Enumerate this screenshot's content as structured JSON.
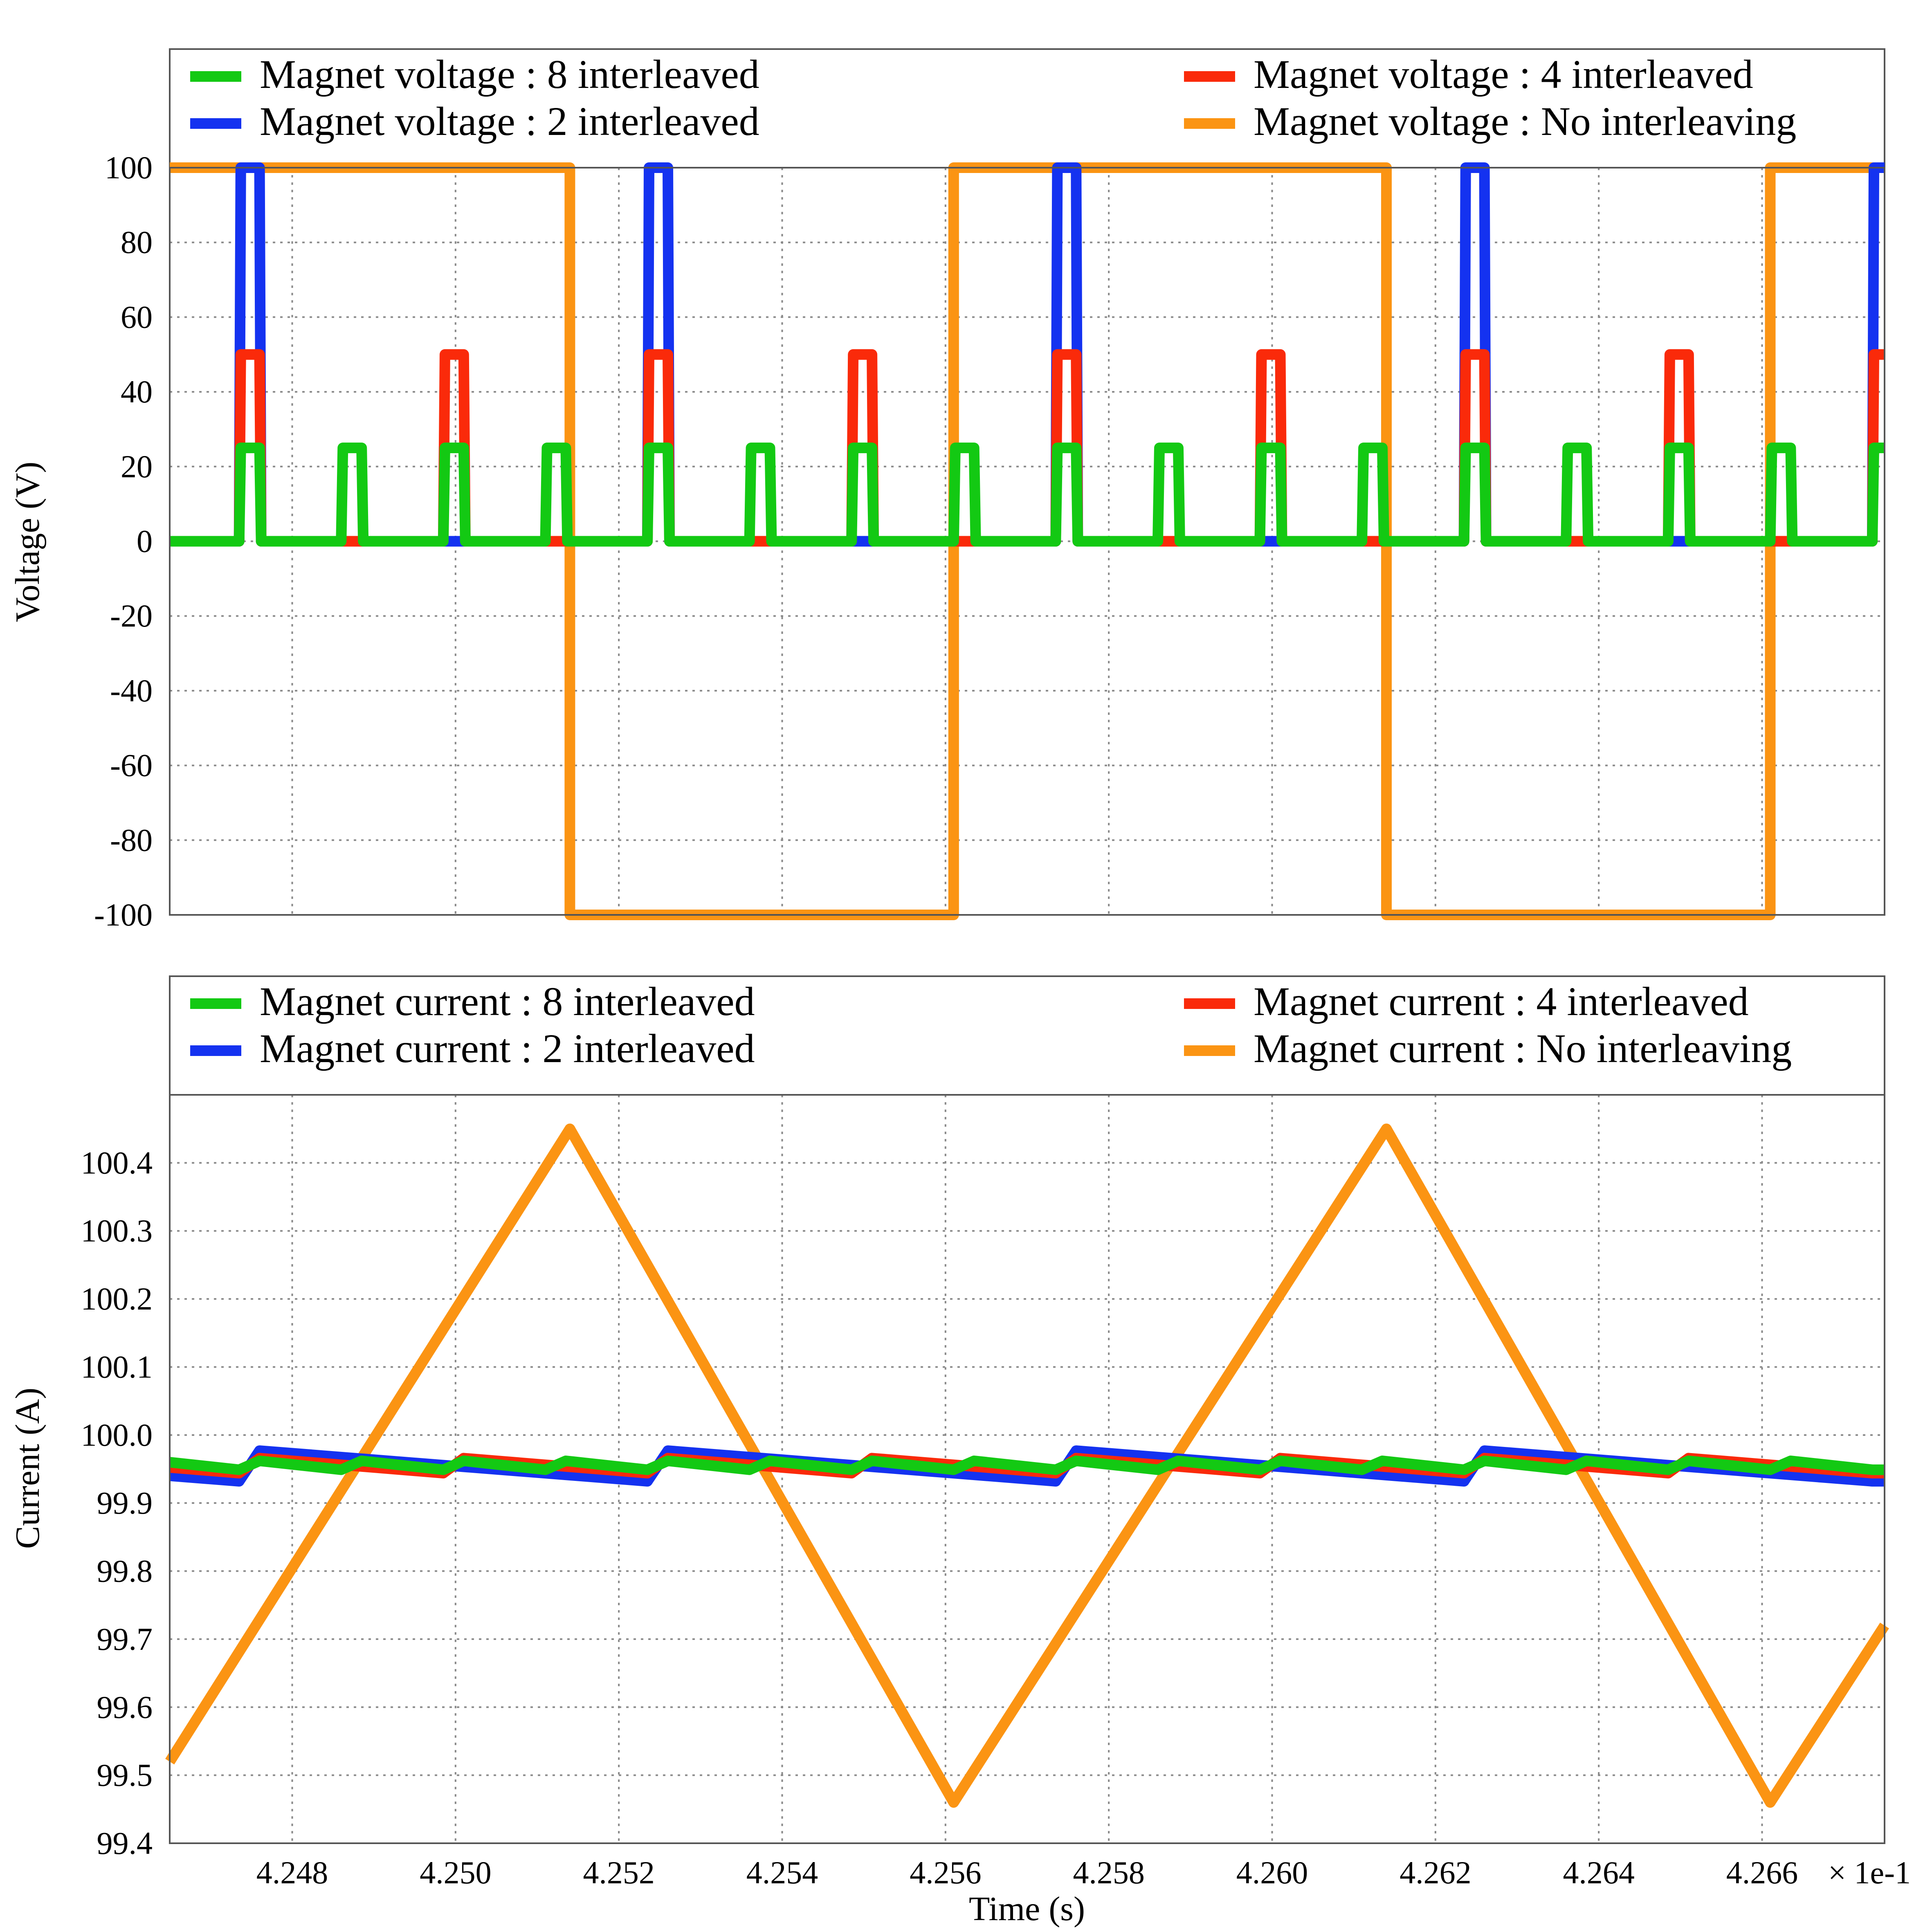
{
  "chart_data": [
    {
      "type": "line",
      "ylabel": "Voltage (V)",
      "xlabel": "",
      "xlim": [
        4.2465,
        4.2675
      ],
      "ylim": [
        -100,
        100
      ],
      "xticks": [
        "4.248",
        "4.250",
        "4.252",
        "4.254",
        "4.256",
        "4.258",
        "4.260",
        "4.262",
        "4.264",
        "4.266"
      ],
      "yticks": [
        "100",
        "80",
        "60",
        "40",
        "20",
        "0",
        "-20",
        "-40",
        "-60",
        "-80",
        "-100"
      ],
      "grid": true,
      "legend_position": "top",
      "series": [
        {
          "name": "Magnet voltage : 8 interleaved",
          "color": "#13c913",
          "kind": "pulse",
          "high": 25,
          "low": 0,
          "period": 0.00125,
          "first_rise": 0.00085,
          "width": 0.00025,
          "z": 4
        },
        {
          "name": "Magnet voltage : 2 interleaved",
          "color": "#1432f0",
          "kind": "pulse",
          "high": 100,
          "low": 0,
          "period": 0.005,
          "first_rise": 0.00085,
          "width": 0.00025,
          "z": 2
        },
        {
          "name": "Magnet voltage : 4 interleaved",
          "color": "#fa2a0a",
          "kind": "pulse",
          "high": 50,
          "low": 0,
          "period": 0.0025,
          "first_rise": 0.00085,
          "width": 0.00025,
          "z": 3
        },
        {
          "name": "Magnet voltage : No interleaving",
          "color": "#fb9413",
          "kind": "square",
          "high": 100,
          "low": -100,
          "x": [
            4.2465,
            4.2514,
            4.2514,
            4.2561,
            4.2561,
            4.2614,
            4.2614,
            4.2661,
            4.2661,
            4.2675
          ],
          "y": [
            100,
            100,
            -100,
            -100,
            100,
            100,
            -100,
            -100,
            100,
            100
          ],
          "z": 1
        }
      ],
      "legend_order": [
        0,
        2,
        1,
        3
      ]
    },
    {
      "type": "line",
      "ylabel": "Current (A)",
      "xlabel": "Time (s)",
      "x_multiplier": "× 1e-1",
      "xlim": [
        4.2465,
        4.2675
      ],
      "ylim": [
        99.4,
        100.5
      ],
      "xticks": [
        "4.248",
        "4.250",
        "4.252",
        "4.254",
        "4.256",
        "4.258",
        "4.260",
        "4.262",
        "4.264",
        "4.266"
      ],
      "yticks": [
        "100.4",
        "100.3",
        "100.2",
        "100.1",
        "100.0",
        "99.9",
        "99.8",
        "99.7",
        "99.6",
        "99.5",
        "99.4"
      ],
      "grid": true,
      "legend_position": "top",
      "series": [
        {
          "name": "Magnet current : 8 interleaved",
          "color": "#13c913",
          "kind": "sawtooth",
          "max": 99.962,
          "min": 99.949,
          "period": 0.00125,
          "first_rise": 0.00085,
          "width": 0.00025,
          "z": 4
        },
        {
          "name": "Magnet current : 2 interleaved",
          "color": "#1432f0",
          "kind": "sawtooth",
          "max": 99.977,
          "min": 99.932,
          "period": 0.005,
          "first_rise": 0.00085,
          "width": 0.00025,
          "z": 2
        },
        {
          "name": "Magnet current : 4 interleaved",
          "color": "#fa2a0a",
          "kind": "sawtooth",
          "max": 99.966,
          "min": 99.944,
          "period": 0.0025,
          "first_rise": 0.00085,
          "width": 0.00025,
          "z": 3
        },
        {
          "name": "Magnet current : No interleaving",
          "color": "#fb9413",
          "kind": "triangle",
          "x": [
            4.2465,
            4.2514,
            4.2561,
            4.2614,
            4.2661,
            4.2675
          ],
          "y": [
            99.52,
            100.45,
            99.46,
            100.45,
            99.46,
            99.72
          ],
          "z": 1
        }
      ],
      "legend_order": [
        0,
        2,
        1,
        3
      ]
    }
  ]
}
